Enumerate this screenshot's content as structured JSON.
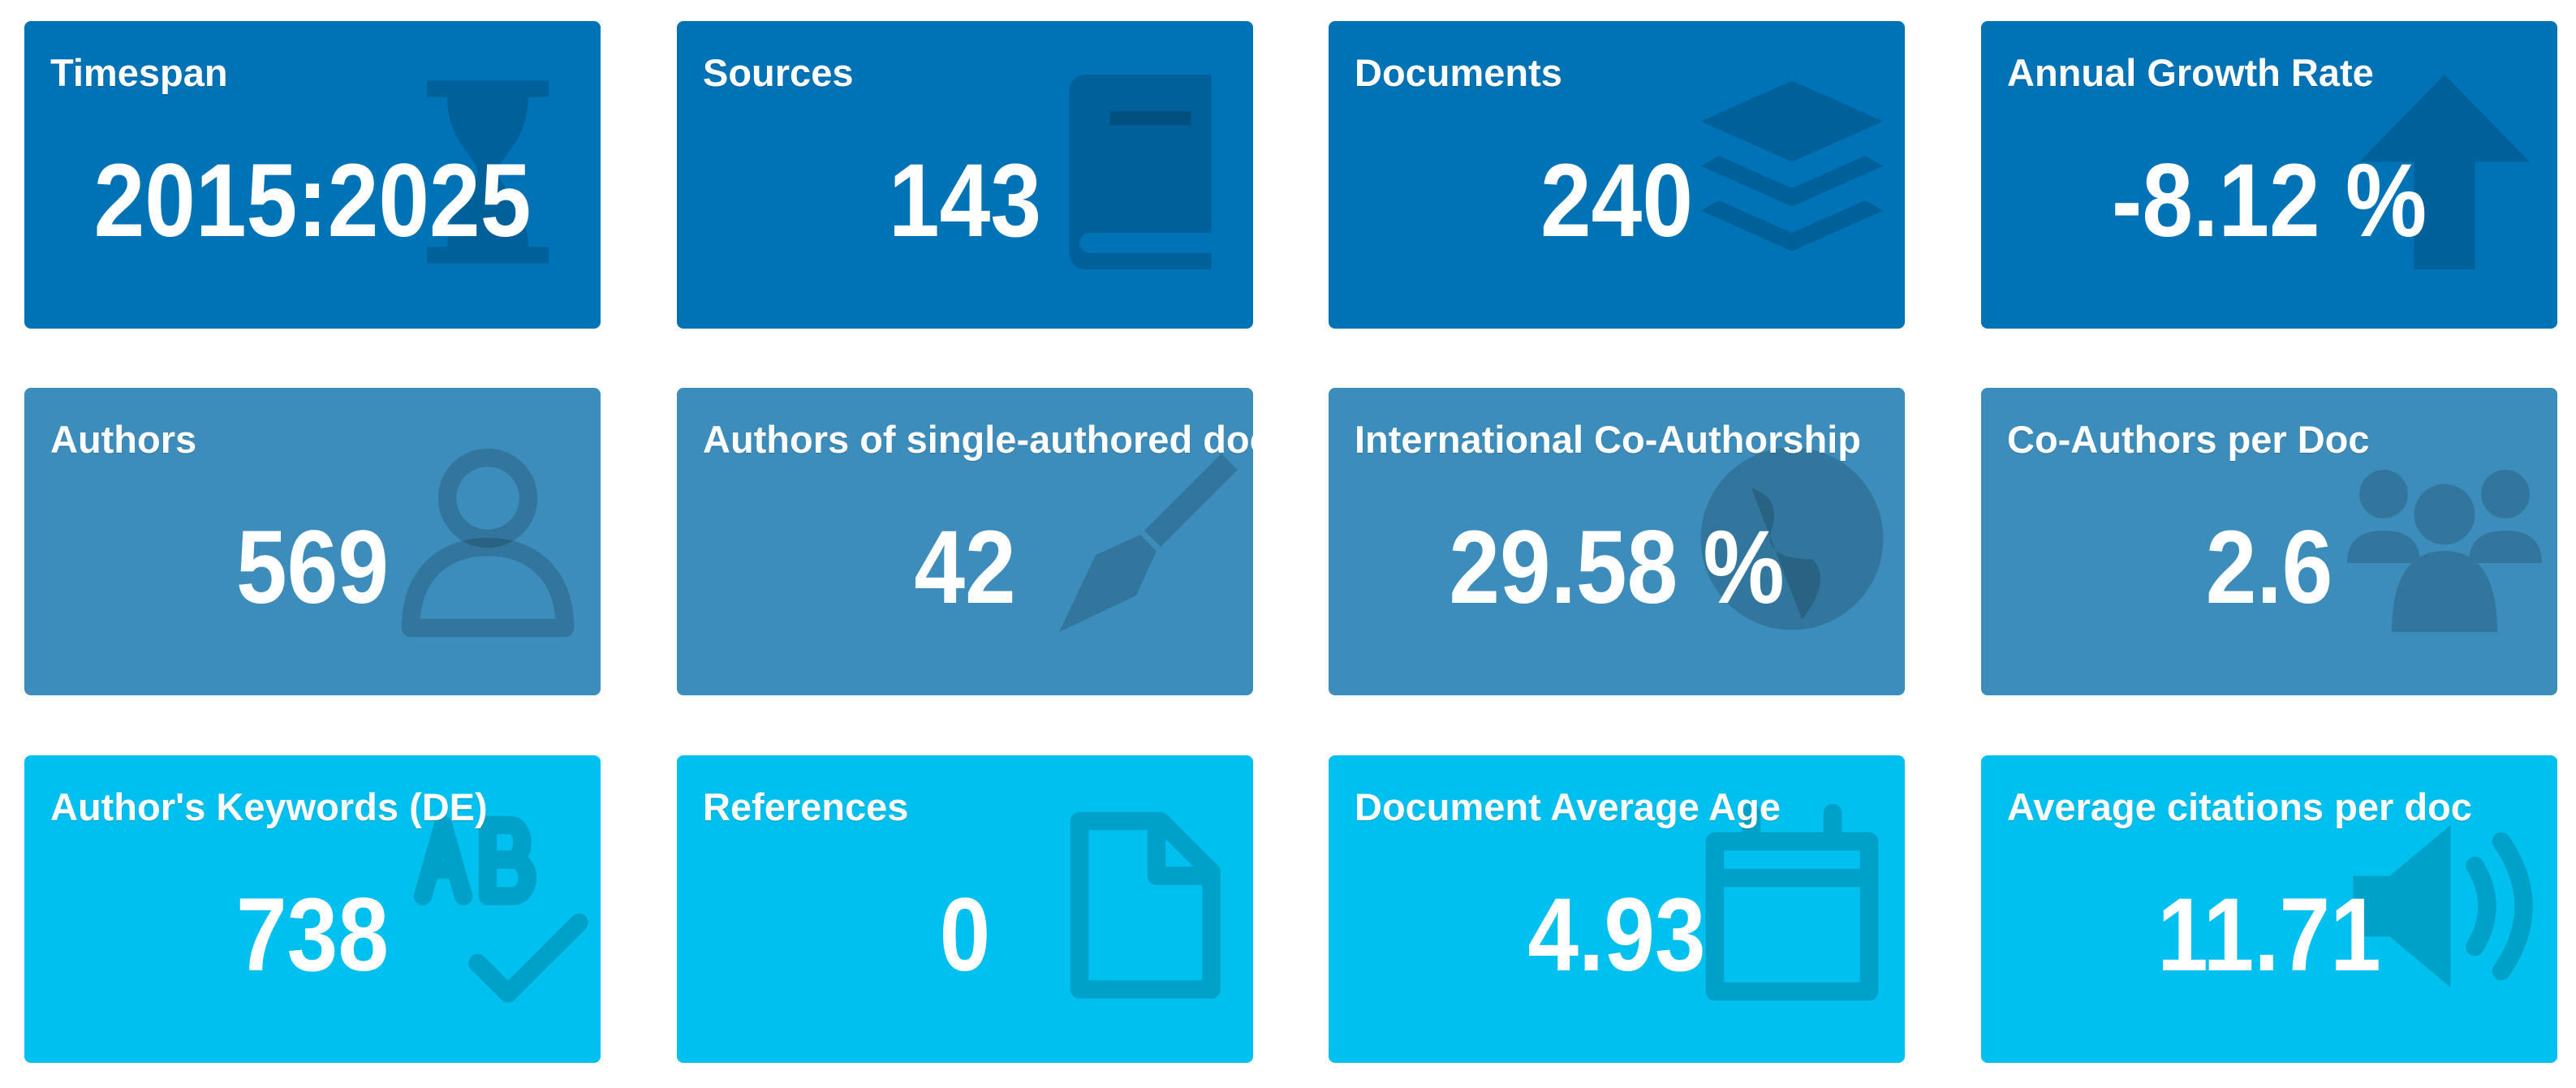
{
  "tiles": [
    {
      "title": "Timespan",
      "value": "2015:2025"
    },
    {
      "title": "Sources",
      "value": "143"
    },
    {
      "title": "Documents",
      "value": "240"
    },
    {
      "title": "Annual Growth Rate",
      "value": "-8.12 %"
    },
    {
      "title": "Authors",
      "value": "569"
    },
    {
      "title": "Authors of single-authored docs",
      "value": "42"
    },
    {
      "title": "International Co-Authorship",
      "value": "29.58 %"
    },
    {
      "title": "Co-Authors per Doc",
      "value": "2.6"
    },
    {
      "title": "Author's Keywords (DE)",
      "value": "738"
    },
    {
      "title": "References",
      "value": "0"
    },
    {
      "title": "Document Average Age",
      "value": "4.93"
    },
    {
      "title": "Average citations per doc",
      "value": "11.71"
    }
  ]
}
